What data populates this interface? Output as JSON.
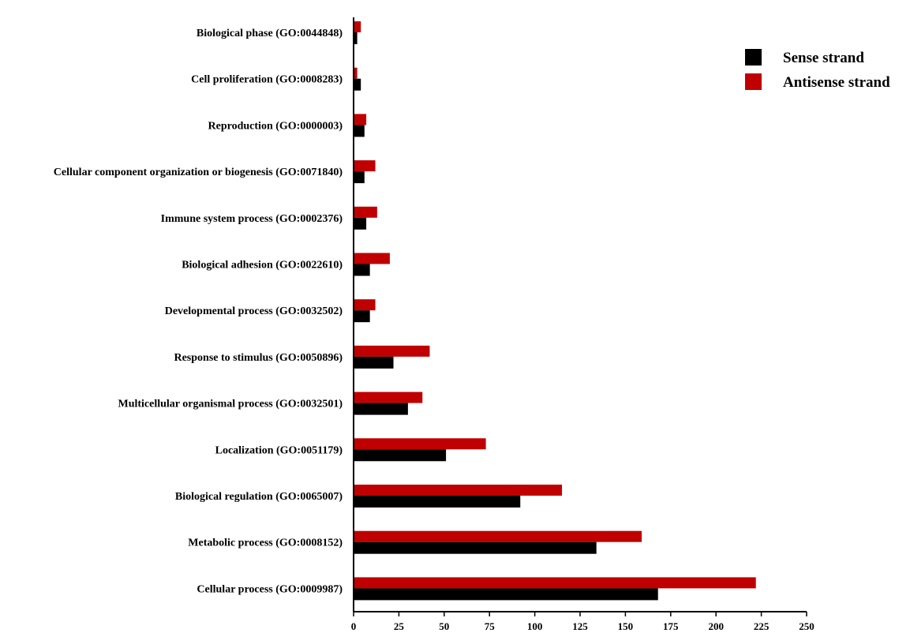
{
  "chart_data": {
    "type": "bar",
    "orientation": "horizontal",
    "categories": [
      "Biological phase (GO:0044848)",
      "Cell proliferation (GO:0008283)",
      "Reproduction (GO:0000003)",
      "Cellular component organization or biogenesis (GO:0071840)",
      "Immune system process (GO:0002376)",
      "Biological adhesion (GO:0022610)",
      "Developmental process (GO:0032502)",
      "Response to stimulus (GO:0050896)",
      "Multicellular organismal process (GO:0032501)",
      "Localization (GO:0051179)",
      "Biological regulation (GO:0065007)",
      "Metabolic process (GO:0008152)",
      "Cellular process (GO:0009987)"
    ],
    "series": [
      {
        "name": "Sense strand",
        "color": "#000000",
        "values": [
          2,
          4,
          6,
          6,
          7,
          9,
          9,
          22,
          30,
          51,
          92,
          134,
          168
        ]
      },
      {
        "name": "Antisense strand",
        "color": "#c00000",
        "values": [
          4,
          2,
          7,
          12,
          13,
          20,
          12,
          42,
          38,
          73,
          115,
          159,
          222
        ]
      }
    ],
    "xticks": [
      "0",
      "25",
      "50",
      "75",
      "100",
      "125",
      "150",
      "175",
      "200",
      "225",
      "250"
    ],
    "xlim": [
      0,
      250
    ],
    "grid": false,
    "legend_position": "top-right",
    "title": "",
    "xlabel": "",
    "ylabel": ""
  }
}
